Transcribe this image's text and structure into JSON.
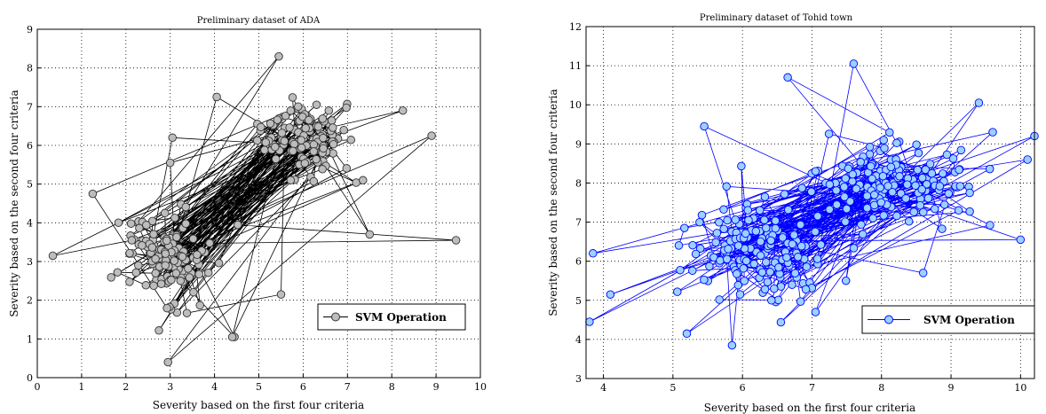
{
  "chart_data": [
    {
      "type": "scatter",
      "title": "Preliminary dataset of ADA",
      "xlabel": "Severity based on the first four criteria",
      "ylabel": "Severity based on the second four criteria",
      "xlim": [
        0,
        10
      ],
      "ylim": [
        0,
        9
      ],
      "xticks": [
        "0",
        "1",
        "2",
        "3",
        "4",
        "5",
        "6",
        "7",
        "8",
        "9",
        "10"
      ],
      "yticks": [
        "0",
        "1",
        "2",
        "3",
        "4",
        "5",
        "6",
        "7",
        "8",
        "9"
      ],
      "grid": true,
      "legend": {
        "placement": "bottom-right"
      },
      "series": [
        {
          "name": "SVM Operation",
          "line_color": "#000000",
          "marker_face": "#bdbdbd",
          "marker_edge": "#333333",
          "connected": true,
          "clusters": [
            {
              "center": [
                2.8,
                3.1
              ],
              "spread": [
                0.75,
                0.85
              ],
              "count": 130
            },
            {
              "center": [
                6.0,
                6.2
              ],
              "spread": [
                0.65,
                0.65
              ],
              "count": 125
            }
          ],
          "points": [
            [
              0.35,
              3.15
            ],
            [
              9.45,
              3.55
            ],
            [
              8.9,
              6.25
            ],
            [
              5.45,
              8.3
            ],
            [
              7.5,
              3.7
            ],
            [
              2.95,
              0.4
            ],
            [
              4.45,
              1.05
            ],
            [
              1.25,
              4.75
            ],
            [
              5.5,
              2.15
            ],
            [
              4.05,
              7.25
            ],
            [
              3.05,
              6.2
            ],
            [
              7.35,
              5.1
            ],
            [
              8.25,
              6.9
            ],
            [
              4.4,
              1.05
            ],
            [
              3.0,
              5.55
            ]
          ]
        }
      ]
    },
    {
      "type": "scatter",
      "title": "Preliminary dataset of Tohid town",
      "xlabel": "Severity based on the first four criteria",
      "ylabel": "Severity based on the second four criteria",
      "xlim": [
        3.75,
        10.2
      ],
      "ylim": [
        3,
        12
      ],
      "xticks": [
        "4",
        "5",
        "6",
        "7",
        "8",
        "9",
        "10"
      ],
      "yticks": [
        "3",
        "4",
        "5",
        "6",
        "7",
        "8",
        "9",
        "10",
        "11",
        "12"
      ],
      "grid": true,
      "legend": {
        "placement": "bottom-right"
      },
      "series": [
        {
          "name": "SVM Operation",
          "line_color": "#0000ff",
          "marker_face": "#9ad1ff",
          "marker_edge": "#0000ff",
          "connected": true,
          "clusters": [
            {
              "center": [
                6.2,
                6.2
              ],
              "spread": [
                0.65,
                0.85
              ],
              "count": 160
            },
            {
              "center": [
                8.1,
                8.0
              ],
              "spread": [
                0.8,
                0.65
              ],
              "count": 170
            }
          ],
          "points": [
            [
              3.8,
              4.45
            ],
            [
              3.85,
              6.2
            ],
            [
              10.2,
              9.2
            ],
            [
              7.6,
              11.05
            ],
            [
              6.65,
              10.7
            ],
            [
              5.85,
              3.85
            ],
            [
              5.2,
              4.15
            ],
            [
              9.4,
              10.05
            ],
            [
              10.0,
              6.55
            ],
            [
              4.1,
              5.15
            ],
            [
              5.45,
              9.45
            ],
            [
              9.6,
              9.3
            ],
            [
              10.1,
              8.6
            ],
            [
              7.05,
              4.7
            ],
            [
              8.6,
              5.7
            ]
          ]
        }
      ]
    }
  ]
}
